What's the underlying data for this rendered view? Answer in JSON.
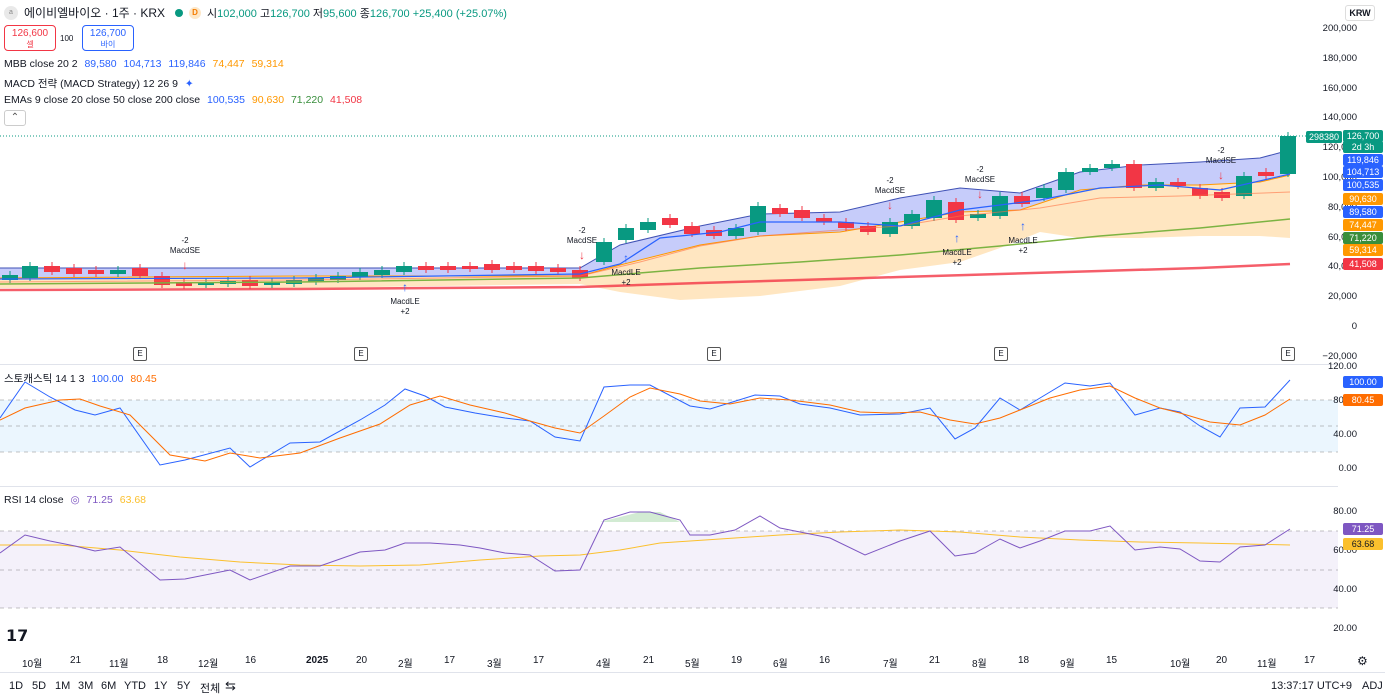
{
  "header": {
    "logo_text": "a",
    "title": "에이비엘바이오 · 1주 · KRX",
    "interval_badge": "D",
    "open_label": "시",
    "open": "102,000",
    "high_label": "고",
    "high": "126,700",
    "low_label": "저",
    "low": "95,600",
    "close_label": "종",
    "close": "126,700",
    "change": "+25,400 (+25.07%)"
  },
  "trade": {
    "sell_price": "126,600",
    "sell_label": "셀",
    "spread": "100",
    "buy_price": "126,700",
    "buy_label": "바이"
  },
  "indicators": {
    "mbb": {
      "label": "MBB close 20 2",
      "v1": "89,580",
      "v2": "104,713",
      "v3": "119,846",
      "v4": "74,447",
      "v5": "59,314"
    },
    "macd": {
      "label": "MACD 전략 (MACD Strategy) 12 26 9"
    },
    "emas": {
      "label": "EMAs 9 close 20 close 50 close 200 close",
      "v1": "100,535",
      "v2": "90,630",
      "v3": "71,220",
      "v4": "41,508"
    },
    "stoch": {
      "label": "스토캐스틱 14 1 3",
      "v1": "100.00",
      "v2": "80.45"
    },
    "rsi": {
      "label": "RSI 14 close",
      "v1": "71.25",
      "v2": "63.68"
    }
  },
  "currency": "KRW",
  "price_axis": [
    "200,000",
    "180,000",
    "160,000",
    "140,000",
    "120,000",
    "100,000",
    "80,000",
    "60,000",
    "40,000",
    "20,000",
    "0",
    "−20,000"
  ],
  "price_tags": [
    {
      "text": "126,700",
      "color": "#089981"
    },
    {
      "text": "2d 3h",
      "color": "#089981"
    },
    {
      "text": "119,846",
      "color": "#2962ff"
    },
    {
      "text": "104,713",
      "color": "#2962ff"
    },
    {
      "text": "100,535",
      "color": "#2962ff"
    },
    {
      "text": "90,630",
      "color": "#ff9800"
    },
    {
      "text": "89,580",
      "color": "#2962ff"
    },
    {
      "text": "74,447",
      "color": "#ff9800"
    },
    {
      "text": "71,220",
      "color": "#388e3c"
    },
    {
      "text": "59,314",
      "color": "#ff9800"
    },
    {
      "text": "41,508",
      "color": "#f23645"
    }
  ],
  "volume_tag": "298380",
  "stoch_axis": [
    "120.00",
    "80.00",
    "40.00",
    "0.00"
  ],
  "rsi_axis": [
    "80.00",
    "60.00",
    "40.00",
    "20.00"
  ],
  "signals": [
    {
      "text": "-2",
      "text2": "MacdSE"
    },
    {
      "text": "MacdLE",
      "text2": "+2"
    },
    {
      "text": "-2",
      "text2": "MacdSE"
    },
    {
      "text": "MacdLE",
      "text2": "+2"
    },
    {
      "text": "-2",
      "text2": "MacdSE"
    },
    {
      "text": "-2",
      "text2": "MacdSE"
    },
    {
      "text": "MacdLE",
      "text2": "+2"
    },
    {
      "text": "MacdLE",
      "text2": "+2"
    },
    {
      "text": "-2",
      "text2": "MacdSE"
    }
  ],
  "earnings_badge": "E",
  "x_axis": [
    "10월",
    "21",
    "11월",
    "18",
    "12월",
    "16",
    "2025",
    "20",
    "2월",
    "17",
    "3월",
    "17",
    "4월",
    "21",
    "5월",
    "19",
    "6월",
    "16",
    "7월",
    "21",
    "8월",
    "18",
    "9월",
    "15",
    "10월",
    "20",
    "11월",
    "17"
  ],
  "bottom": {
    "ranges": [
      "1D",
      "5D",
      "1M",
      "3M",
      "6M",
      "YTD",
      "1Y",
      "5Y",
      "전체"
    ],
    "time": "13:37:17 UTC+9",
    "adj": "ADJ"
  }
}
